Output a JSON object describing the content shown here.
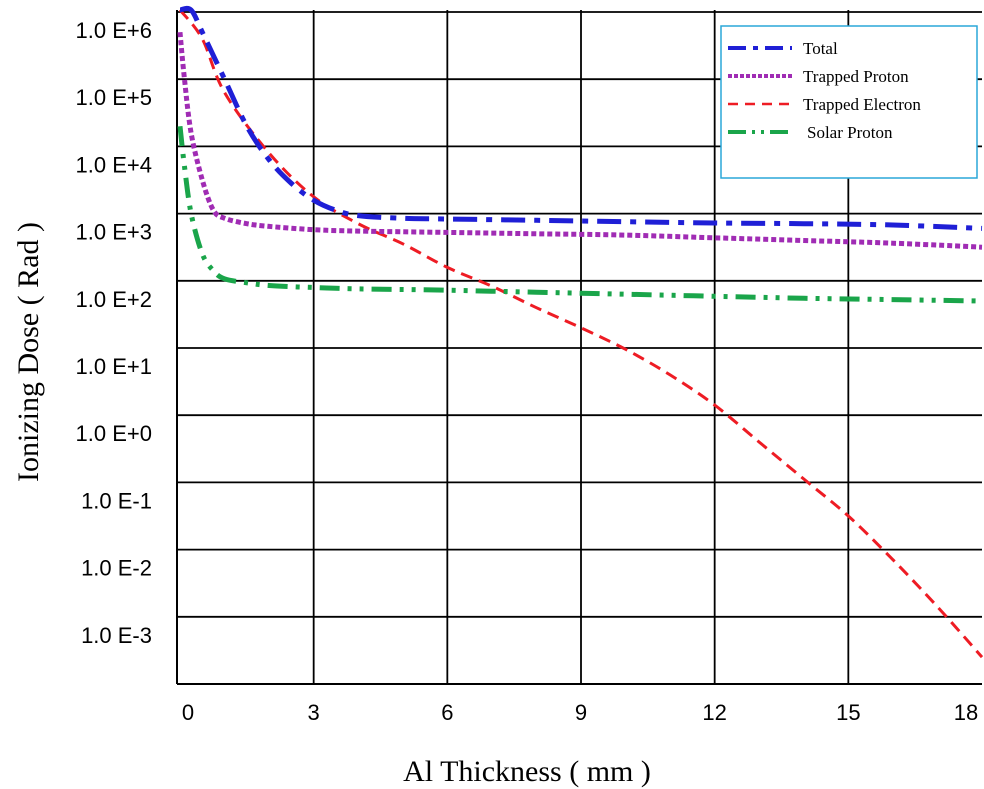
{
  "chart_data": {
    "type": "line",
    "title": "",
    "xlabel": "Al Thickness ( mm )",
    "ylabel": "Ionizing Dose ( Rad )",
    "y_scale": "log",
    "xlim": [
      0,
      18
    ],
    "ylim": [
      -4,
      6.5
    ],
    "grid": true,
    "legend_position": "top-right",
    "x_ticks": [
      {
        "value": 0,
        "label": "0"
      },
      {
        "value": 3,
        "label": "3"
      },
      {
        "value": 6,
        "label": "6"
      },
      {
        "value": 9,
        "label": "9"
      },
      {
        "value": 12,
        "label": "12"
      },
      {
        "value": 15,
        "label": "15"
      },
      {
        "value": 18,
        "label": "18"
      }
    ],
    "y_ticks": [
      {
        "value": 6,
        "label": "1.0 E+6"
      },
      {
        "value": 5,
        "label": "1.0 E+5"
      },
      {
        "value": 4,
        "label": "1.0 E+4"
      },
      {
        "value": 3,
        "label": "1.0 E+3"
      },
      {
        "value": 2,
        "label": "1.0 E+2"
      },
      {
        "value": 1,
        "label": "1.0 E+1"
      },
      {
        "value": 0,
        "label": "1.0 E+0"
      },
      {
        "value": -1,
        "label": "1.0 E-1"
      },
      {
        "value": -2,
        "label": "1.0 E-2"
      },
      {
        "value": -3,
        "label": "1.0 E-3"
      }
    ],
    "series": [
      {
        "name": "Total",
        "color": "#1f1fd6",
        "dash": "24,9,6,9",
        "x": [
          0,
          0.25,
          0.5,
          1,
          1.5,
          2,
          2.5,
          3,
          3.5,
          4,
          5,
          6,
          8,
          10,
          12,
          14,
          16,
          18
        ],
        "y": [
          6.5,
          6.2,
          5.7,
          5.0,
          4.3,
          3.8,
          3.45,
          3.2,
          3.05,
          2.97,
          2.93,
          2.92,
          2.9,
          2.88,
          2.86,
          2.85,
          2.83,
          2.78
        ]
      },
      {
        "name": "Trapped Proton",
        "color": "#a02cb4",
        "dash": "5,3",
        "x": [
          0,
          0.1,
          0.25,
          0.5,
          0.75,
          1,
          1.5,
          2,
          3,
          4,
          6,
          8,
          10,
          12,
          14,
          16,
          18
        ],
        "y": [
          5.7,
          5.0,
          4.2,
          3.5,
          3.05,
          2.93,
          2.85,
          2.81,
          2.76,
          2.74,
          2.72,
          2.7,
          2.68,
          2.64,
          2.6,
          2.56,
          2.5
        ]
      },
      {
        "name": "Trapped Electron",
        "color": "#ee1c24",
        "dash": "12,7",
        "x": [
          0,
          0.5,
          1,
          2,
          3,
          4,
          5,
          6,
          7,
          8,
          9,
          10,
          11,
          12,
          13,
          14,
          15,
          16,
          17,
          18
        ],
        "y": [
          6.5,
          5.6,
          4.8,
          3.9,
          3.25,
          2.85,
          2.55,
          2.2,
          1.92,
          1.6,
          1.3,
          0.98,
          0.6,
          0.15,
          -0.4,
          -0.95,
          -1.5,
          -2.15,
          -2.85,
          -3.6
        ]
      },
      {
        "name": "Solar Proton",
        "color": "#1aa54a",
        "dash": "20,8,4,8,4,8",
        "x": [
          0,
          0.1,
          0.25,
          0.5,
          0.75,
          1,
          1.5,
          2,
          3,
          4,
          6,
          8,
          10,
          12,
          14,
          16,
          18
        ],
        "y": [
          4.3,
          3.7,
          3.0,
          2.4,
          2.15,
          2.03,
          1.97,
          1.93,
          1.9,
          1.88,
          1.86,
          1.83,
          1.8,
          1.77,
          1.74,
          1.72,
          1.7
        ]
      }
    ]
  }
}
